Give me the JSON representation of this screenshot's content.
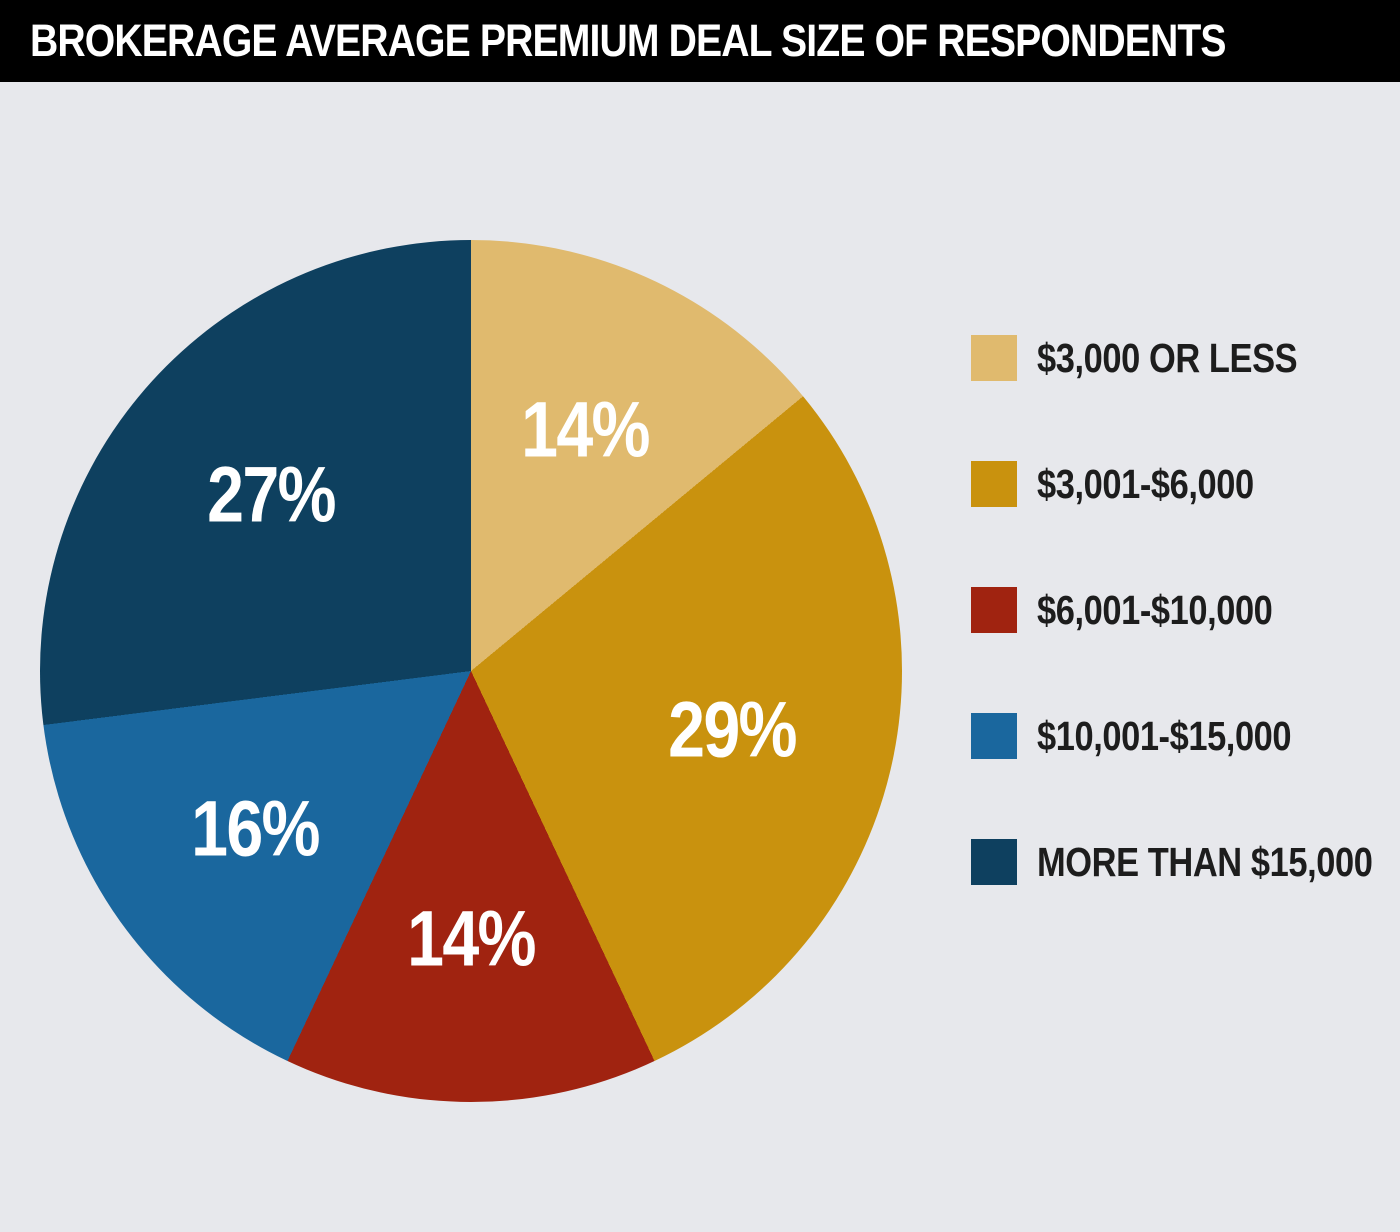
{
  "page": {
    "background_color": "#e7e8ec"
  },
  "header": {
    "background_color": "#000000",
    "text_color": "#ffffff"
  },
  "chart_data": {
    "type": "pie",
    "title": "BROKERAGE AVERAGE PREMIUM DEAL SIZE OF RESPONDENTS",
    "direction": "clockwise",
    "start_angle_deg": 0,
    "legend_position": "right",
    "data_label_color": "#ffffff",
    "slices": [
      {
        "label": "$3,000 OR LESS",
        "value_pct": 14,
        "data_label": "14%",
        "color": "#e0ba6e"
      },
      {
        "label": "$3,001-$6,000",
        "value_pct": 29,
        "data_label": "29%",
        "color": "#c9920e"
      },
      {
        "label": "$6,001-$10,000",
        "value_pct": 14,
        "data_label": "14%",
        "color": "#a02310"
      },
      {
        "label": "$10,001-$15,000",
        "value_pct": 16,
        "data_label": "16%",
        "color": "#1a679e"
      },
      {
        "label": "MORE THAN $15,000",
        "value_pct": 27,
        "data_label": "27%",
        "color": "#0e405f"
      }
    ]
  }
}
